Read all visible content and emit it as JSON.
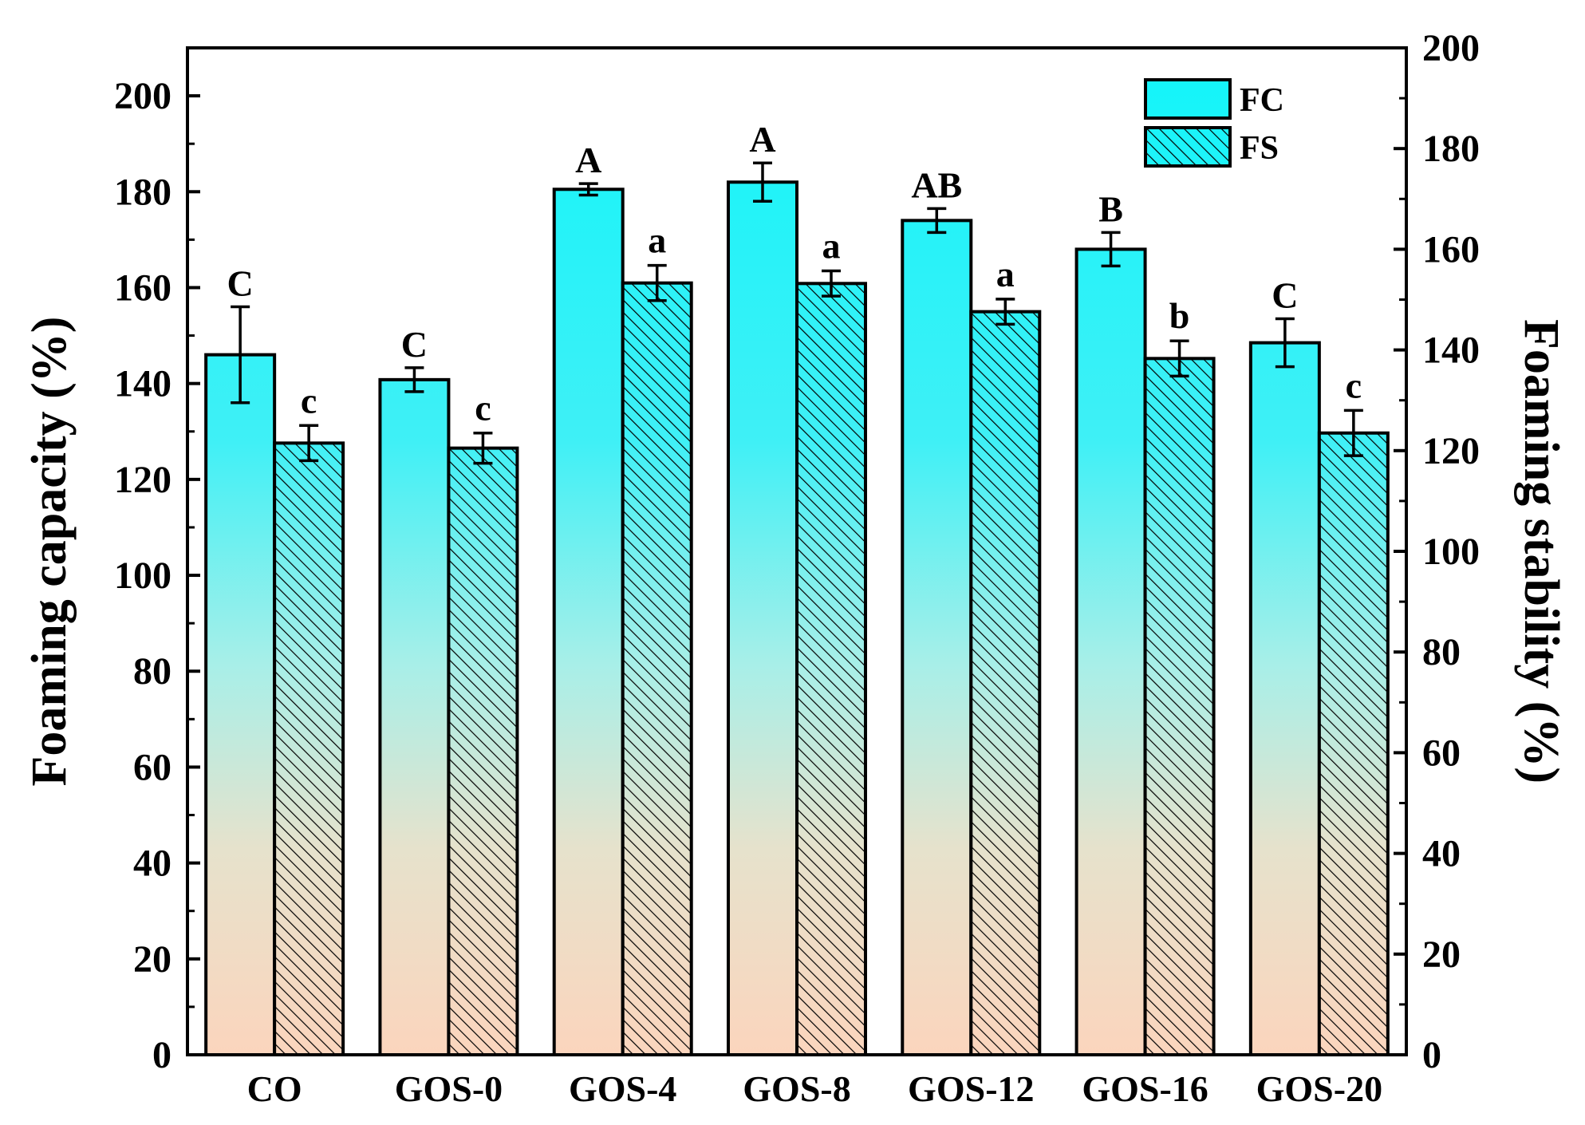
{
  "chart_data": {
    "type": "bar",
    "categories": [
      "CO",
      "GOS-0",
      "GOS-4",
      "GOS-8",
      "GOS-12",
      "GOS-16",
      "GOS-20"
    ],
    "series": [
      {
        "name": "FC",
        "axis": "left",
        "values": [
          146,
          140.8,
          180.5,
          182,
          174,
          168,
          148.5
        ],
        "errors": [
          10,
          2.5,
          1.2,
          4,
          2.5,
          3.5,
          5
        ],
        "significance": [
          "C",
          "C",
          "A",
          "A",
          "AB",
          "B",
          "C"
        ],
        "fill": "gradient-cyan-peach"
      },
      {
        "name": "FS",
        "axis": "right",
        "values": [
          121.5,
          120.5,
          153.3,
          153.2,
          147.6,
          138.3,
          123.5
        ],
        "errors": [
          3.5,
          3,
          3.5,
          2.5,
          2.5,
          3.5,
          4.5
        ],
        "significance": [
          "c",
          "c",
          "a",
          "a",
          "a",
          "b",
          "c"
        ],
        "fill": "hatched-gradient"
      }
    ],
    "ylabel": "Foaming capacity (%)",
    "ylabel_right": "Foaming stability (%)",
    "ylim": [
      0,
      210
    ],
    "ylim_right": [
      0,
      200
    ],
    "yticks": [
      0,
      20,
      40,
      60,
      80,
      100,
      120,
      140,
      160,
      180,
      200
    ],
    "yticks_right": [
      0,
      20,
      40,
      60,
      80,
      100,
      120,
      140,
      160,
      180,
      200
    ],
    "legend_position": "top-right",
    "colors": {
      "bar_top": "#1ef2f8",
      "bar_mid": "#9ff0ec",
      "bar_bottom": "#f9d6bf",
      "hatch": "#000000",
      "outline": "#000000"
    }
  }
}
